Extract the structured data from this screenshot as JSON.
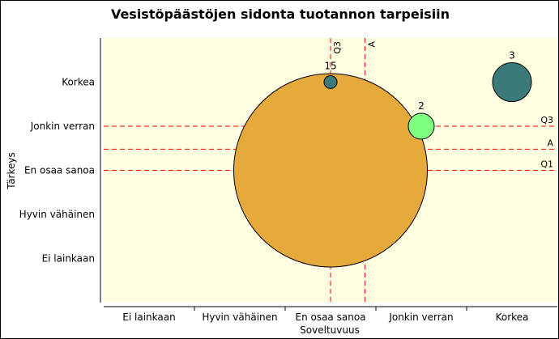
{
  "chart_data": {
    "type": "scatter",
    "title": "Vesistöpäästöjen sidonta tuotannon tarpeisiin",
    "xlabel": "Soveltuvuus",
    "ylabel": "Tärkeys",
    "x_categories": [
      "Ei lainkaan",
      "Hyvin vähäinen",
      "En osaa sanoa",
      "Jonkin verran",
      "Korkea"
    ],
    "y_categories": [
      "Ei lainkaan",
      "Hyvin vähäinen",
      "En osaa sanoa",
      "Jonkin verran",
      "Korkea"
    ],
    "xlim": [
      0.5,
      5.5
    ],
    "ylim": [
      0,
      6
    ],
    "grid": false,
    "background_color": "#fffee0",
    "bubbles": [
      {
        "label": "15",
        "x": 3,
        "y": 3,
        "count": 15,
        "color": "#e6a93b"
      },
      {
        "label": "",
        "x": 3,
        "y": 5,
        "count": 1,
        "color": "#3c7a7a"
      },
      {
        "label": "2",
        "x": 4,
        "y": 4,
        "count": 2,
        "color": "#80ff80"
      },
      {
        "label": "3",
        "x": 5,
        "y": 5,
        "count": 3,
        "color": "#3c7a7a"
      }
    ],
    "reference_lines": {
      "vertical": [
        {
          "label": "Q3",
          "x": 3.0
        },
        {
          "label": "A",
          "x": 3.38
        }
      ],
      "horizontal": [
        {
          "label": "Q3",
          "y": 4.0
        },
        {
          "label": "A",
          "y": 3.48
        },
        {
          "label": "Q1",
          "y": 3.0
        }
      ],
      "color": "#ff0000"
    }
  }
}
